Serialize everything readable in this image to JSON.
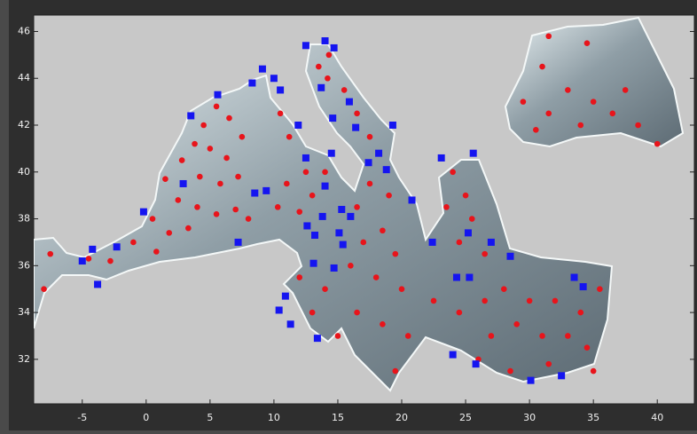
{
  "chart_data": {
    "type": "scatter",
    "xlim": [
      -8.8,
      42.9
    ],
    "ylim": [
      30.1,
      46.7
    ],
    "xticks": [
      -5,
      0,
      5,
      10,
      15,
      20,
      25,
      30,
      35,
      40
    ],
    "yticks": [
      32,
      34,
      36,
      38,
      40,
      42,
      44,
      46
    ],
    "series": [
      {
        "marker": "circle",
        "color": "#e8141b",
        "x": [
          5.5,
          6.5,
          4.5,
          3.8,
          5.0,
          6.3,
          7.5,
          2.8,
          4.2,
          5.8,
          7.2,
          1.5,
          2.5,
          4.0,
          5.5,
          7.0,
          0.5,
          1.8,
          3.3,
          -1.0,
          0.8,
          -2.8,
          -4.5,
          -7.5,
          -8.0,
          8.0,
          10.5,
          11.2,
          12.5,
          11.0,
          13.0,
          14.0,
          10.3,
          12.0,
          13.5,
          14.2,
          15.5,
          16.5,
          17.5,
          14.3,
          17.5,
          19.0,
          16.5,
          18.5,
          17.0,
          19.5,
          16.0,
          18.0,
          20.0,
          12.0,
          14.0,
          16.5,
          18.5,
          15.0,
          20.5,
          19.5,
          13.0,
          24.0,
          25.0,
          23.5,
          25.5,
          24.5,
          26.5,
          22.5,
          24.5,
          26.5,
          28.0,
          30.0,
          32.0,
          34.0,
          35.5,
          27.0,
          29.0,
          31.0,
          33.0,
          34.5,
          26.0,
          28.5,
          31.5,
          35.0,
          31.0,
          33.0,
          35.0,
          37.5,
          29.5,
          31.5,
          34.0,
          36.5,
          38.5,
          30.5,
          40.0,
          34.5,
          31.5
        ],
        "y": [
          42.8,
          42.3,
          42.0,
          41.2,
          41.0,
          40.6,
          41.5,
          40.5,
          39.8,
          39.5,
          39.8,
          39.7,
          38.8,
          38.5,
          38.2,
          38.4,
          38.0,
          37.4,
          37.6,
          37.0,
          36.6,
          36.2,
          36.3,
          36.5,
          35.0,
          38.0,
          42.5,
          41.5,
          40.0,
          39.5,
          39.0,
          40.0,
          38.5,
          38.3,
          44.5,
          44.0,
          43.5,
          42.5,
          41.5,
          45.0,
          39.5,
          39.0,
          38.5,
          37.5,
          37.0,
          36.5,
          36.0,
          35.5,
          35.0,
          35.5,
          35.0,
          34.0,
          33.5,
          33.0,
          33.0,
          31.5,
          34.0,
          40.0,
          39.0,
          38.5,
          38.0,
          37.0,
          36.5,
          34.5,
          34.0,
          34.5,
          35.0,
          34.5,
          34.5,
          34.0,
          35.0,
          33.0,
          33.5,
          33.0,
          33.0,
          32.5,
          32.0,
          31.5,
          31.8,
          31.5,
          44.5,
          43.5,
          43.0,
          43.5,
          43.0,
          42.5,
          42.0,
          42.5,
          42.0,
          41.8,
          41.2,
          45.5,
          45.8
        ]
      },
      {
        "marker": "square",
        "color": "#1515f0",
        "x": [
          5.6,
          3.5,
          9.1,
          8.3,
          10.0,
          10.5,
          12.5,
          14.0,
          14.7,
          13.7,
          15.9,
          14.6,
          16.4,
          19.3,
          11.9,
          14.5,
          12.5,
          18.2,
          17.4,
          18.8,
          23.1,
          25.6,
          2.9,
          8.5,
          9.4,
          -0.2,
          14.0,
          13.8,
          15.3,
          16.0,
          20.8,
          12.6,
          13.2,
          15.1,
          15.4,
          22.4,
          25.2,
          27.0,
          7.2,
          -2.3,
          -4.2,
          -5.0,
          -3.8,
          13.1,
          14.7,
          24.3,
          25.3,
          28.5,
          33.5,
          34.2,
          10.9,
          10.4,
          11.3,
          13.4,
          24.0,
          25.8,
          30.1,
          32.5
        ],
        "y": [
          43.3,
          42.4,
          44.4,
          43.8,
          44.0,
          43.5,
          45.4,
          45.6,
          45.3,
          43.6,
          43.0,
          42.3,
          41.9,
          42.0,
          42.0,
          40.8,
          40.6,
          40.8,
          40.4,
          40.1,
          40.6,
          40.8,
          39.5,
          39.1,
          39.2,
          38.3,
          39.4,
          38.1,
          38.4,
          38.1,
          38.8,
          37.7,
          37.3,
          37.4,
          36.9,
          37.0,
          37.4,
          37.0,
          37.0,
          36.8,
          36.7,
          36.2,
          35.2,
          36.1,
          35.9,
          35.5,
          35.5,
          36.4,
          35.5,
          35.1,
          34.7,
          34.1,
          33.5,
          32.9,
          32.2,
          31.8,
          31.1,
          31.3
        ]
      }
    ]
  }
}
